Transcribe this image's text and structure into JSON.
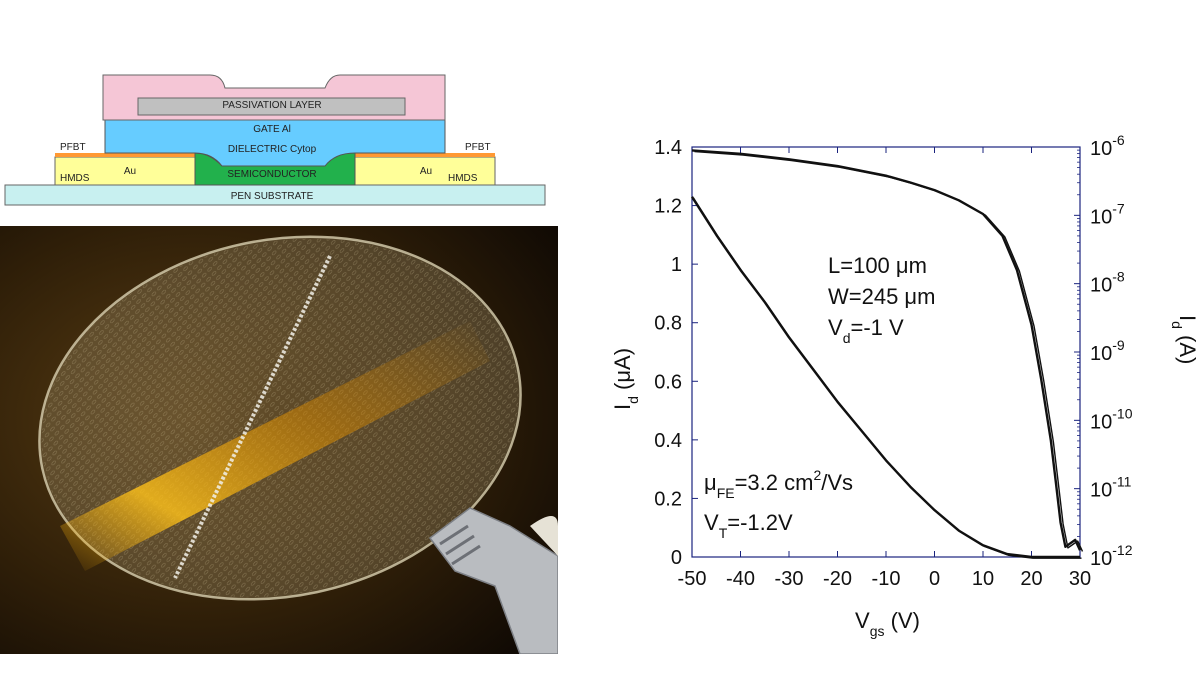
{
  "stack_diagram": {
    "layers": {
      "passivation": "PASSIVATION LAYER",
      "gate": "GATE Al",
      "dielectric": "DIELECTRIC  Cytop",
      "semiconductor": "SEMICONDUCTOR",
      "substrate": "PEN SUBSTRATE",
      "electrode_left": "Au",
      "electrode_right": "Au",
      "sam_left_top": "PFBT",
      "sam_right_top": "PFBT",
      "sam_left_bottom": "HMDS",
      "sam_right_bottom": "HMDS"
    },
    "colors": {
      "passivation": "#f5c6d6",
      "gate": "#c0c0c0",
      "dielectric": "#66ccff",
      "semiconductor": "#22b14c",
      "substrate": "#c8f0f0",
      "electrode": "#ffff99",
      "pfbt": "#ff9933"
    }
  },
  "chart_data": {
    "type": "line",
    "x_ticks": [
      "-50",
      "-40",
      "-30",
      "-20",
      "-10",
      "0",
      "10",
      "20",
      "30"
    ],
    "y_ticks_left": [
      "0",
      "0.2",
      "0.4",
      "0.6",
      "0.8",
      "1",
      "1.2",
      "1.4"
    ],
    "y_ticks_right": [
      {
        "base": "10",
        "exp": "-12"
      },
      {
        "base": "10",
        "exp": "-11"
      },
      {
        "base": "10",
        "exp": "-10"
      },
      {
        "base": "10",
        "exp": "-9"
      },
      {
        "base": "10",
        "exp": "-8"
      },
      {
        "base": "10",
        "exp": "-7"
      },
      {
        "base": "10",
        "exp": "-6"
      }
    ],
    "xlabel": {
      "main": "V",
      "sub": "gs",
      "unit": " (V)"
    },
    "ylabel_left": {
      "main": "I",
      "sub": "d",
      "unit": " (μA)"
    },
    "ylabel_right": {
      "main": "I",
      "sub": "d",
      "unit": " (A)"
    },
    "xlim": [
      -50,
      30
    ],
    "ylim_left": [
      0,
      1.4
    ],
    "ylim_right_log10": [
      -12,
      -6
    ],
    "annotations": {
      "L": "L=100 μm",
      "W": "W=245 μm",
      "Vd_main": "V",
      "Vd_sub": "d",
      "Vd_val": "=-1 V",
      "mu_main": "μ",
      "mu_sub": "FE",
      "mu_val": "=3.2 cm",
      "mu_sup": "2",
      "mu_tail": "/Vs",
      "VT_main": "V",
      "VT_sub": "T",
      "VT_val": "=-1.2V"
    },
    "series": [
      {
        "scale": "linear",
        "x": [
          -50,
          -45,
          -40,
          -35,
          -30,
          -25,
          -20,
          -15,
          -10,
          -5,
          0,
          5,
          10,
          15,
          20,
          25,
          30
        ],
        "y": [
          1.23,
          1.1,
          0.98,
          0.87,
          0.75,
          0.64,
          0.53,
          0.43,
          0.33,
          0.24,
          0.16,
          0.09,
          0.04,
          0.01,
          0.0,
          0.0,
          0.0
        ]
      },
      {
        "scale": "log",
        "x": [
          -50,
          -40,
          -30,
          -20,
          -10,
          -5,
          0,
          5,
          10,
          14,
          17,
          20,
          22,
          24,
          25,
          26,
          27,
          28,
          29,
          30
        ],
        "y": [
          -6.05,
          -6.1,
          -6.18,
          -6.28,
          -6.42,
          -6.52,
          -6.63,
          -6.78,
          -6.98,
          -7.3,
          -7.8,
          -8.6,
          -9.4,
          -10.3,
          -10.9,
          -11.5,
          -11.85,
          -11.8,
          -11.75,
          -11.9
        ]
      }
    ],
    "line_color": "#111111"
  }
}
